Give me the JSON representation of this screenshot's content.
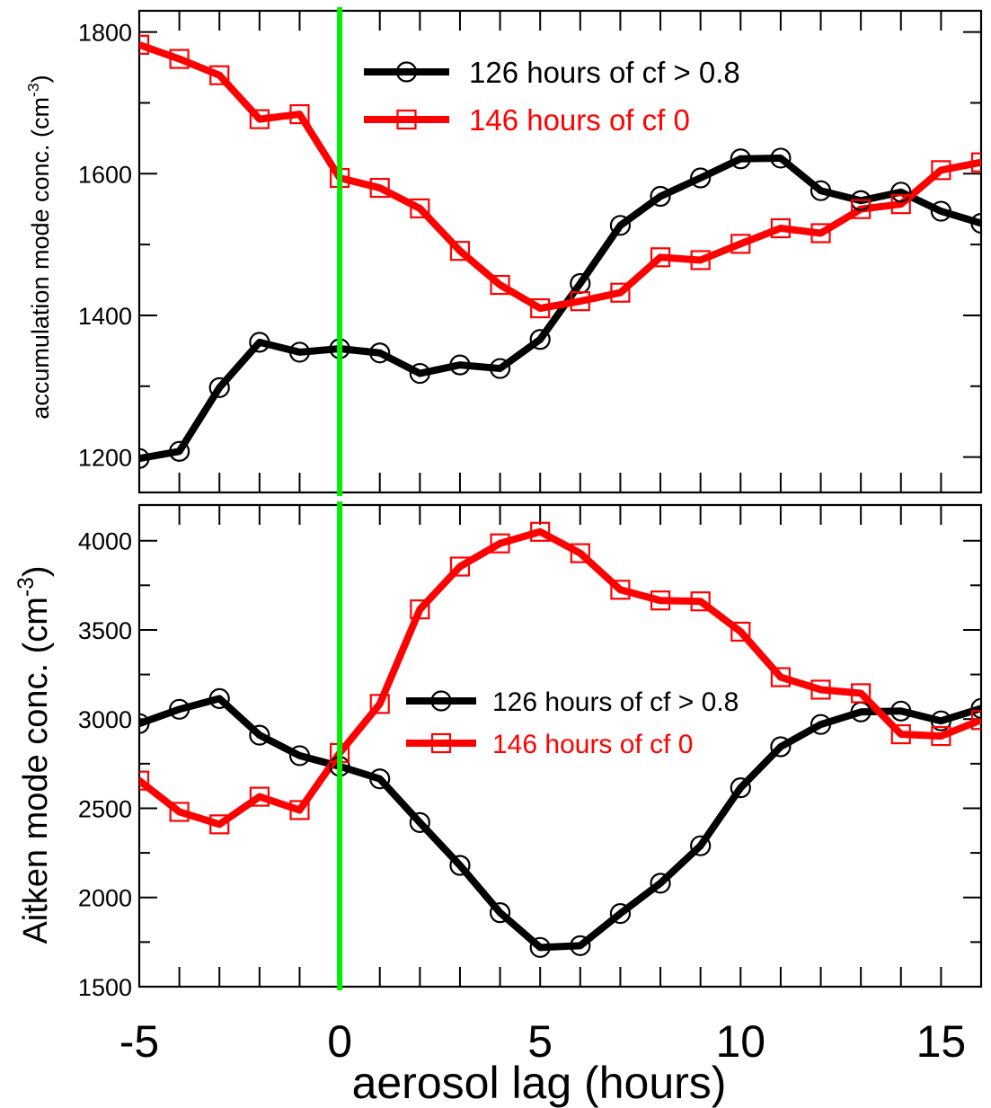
{
  "colors": {
    "black_series": "#000000",
    "red_series": "#ff0000",
    "marker_line": "#00ee00"
  },
  "xlabel": "aerosol lag (hours)",
  "chart_data": [
    {
      "type": "line",
      "panel": "top",
      "ylabel_main": "accumulation mode conc. (cm",
      "ylabel_sup": "-3",
      "ylabel_close": ")",
      "xlim": [
        -5,
        16
      ],
      "ylim": [
        1150,
        1830
      ],
      "yticks": [
        1200,
        1400,
        1600,
        1800
      ],
      "xticks": [
        -5,
        0,
        5,
        10,
        15
      ],
      "vertical_line_x": 0,
      "x": [
        -5,
        -4,
        -3,
        -2,
        -1,
        0,
        1,
        2,
        3,
        4,
        5,
        6,
        7,
        8,
        9,
        10,
        11,
        12,
        13,
        14,
        15,
        16
      ],
      "series": [
        {
          "name": "126 hours of cf > 0.8",
          "marker": "circle",
          "color": "#000000",
          "values": [
            1198,
            1208,
            1298,
            1362,
            1348,
            1353,
            1347,
            1318,
            1330,
            1325,
            1366,
            1445,
            1527,
            1568,
            1594,
            1621,
            1622,
            1576,
            1562,
            1574,
            1547,
            1530
          ]
        },
        {
          "name": "146 hours of cf 0",
          "marker": "square",
          "color": "#ff0000",
          "values": [
            1782,
            1762,
            1739,
            1677,
            1684,
            1594,
            1580,
            1551,
            1491,
            1443,
            1410,
            1420,
            1432,
            1482,
            1478,
            1501,
            1523,
            1516,
            1550,
            1557,
            1605,
            1616
          ]
        }
      ],
      "legend_position": "top-center"
    },
    {
      "type": "line",
      "panel": "bottom",
      "ylabel_main": "Aitken mode conc.  (cm",
      "ylabel_sup": "-3",
      "ylabel_close": ")",
      "xlim": [
        -5,
        16
      ],
      "ylim": [
        1500,
        4200
      ],
      "yticks": [
        1500,
        2000,
        2500,
        3000,
        3500,
        4000
      ],
      "xticks": [
        -5,
        0,
        5,
        10,
        15
      ],
      "vertical_line_x": 0,
      "x": [
        -5,
        -4,
        -3,
        -2,
        -1,
        0,
        1,
        2,
        3,
        4,
        5,
        6,
        7,
        8,
        9,
        10,
        11,
        12,
        13,
        14,
        15,
        16
      ],
      "series": [
        {
          "name": "126 hours of cf > 0.8",
          "marker": "circle",
          "color": "#000000",
          "values": [
            2975,
            3055,
            3115,
            2910,
            2795,
            2735,
            2665,
            2420,
            2180,
            1915,
            1720,
            1730,
            1910,
            2080,
            2290,
            2615,
            2845,
            2970,
            3040,
            3045,
            2990,
            3060
          ]
        },
        {
          "name": "146 hours of cf 0",
          "marker": "square",
          "color": "#ff0000",
          "values": [
            2655,
            2480,
            2410,
            2565,
            2490,
            2810,
            3085,
            3615,
            3855,
            3985,
            4050,
            3930,
            3725,
            3665,
            3660,
            3490,
            3235,
            3165,
            3145,
            2915,
            2905,
            2995
          ]
        }
      ],
      "legend_position": "center-right"
    }
  ]
}
